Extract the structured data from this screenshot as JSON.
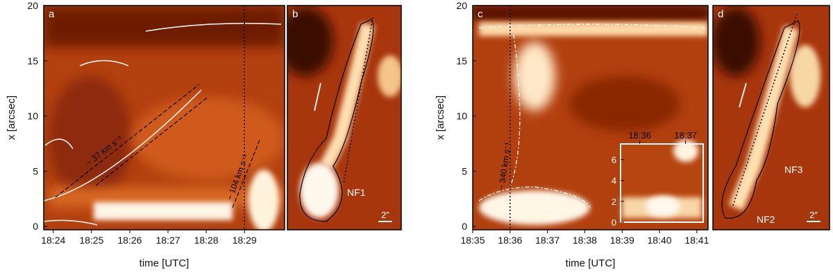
{
  "chart_data": [
    {
      "type": "timeslice",
      "panel": "a",
      "xlabel": "time [UTC]",
      "ylabel": "x [arcsec]",
      "xlim": [
        "18:23:45",
        "18:30:03"
      ],
      "xticks": [
        "18:24",
        "18:25",
        "18:26",
        "18:27",
        "18:28",
        "18:29"
      ],
      "ylim": [
        -0.3,
        20
      ],
      "yticks": [
        0,
        5,
        10,
        15,
        20
      ],
      "vlines": [
        "18:29"
      ],
      "annotations": [
        "~ 37 km s⁻¹",
        "~ 104 km s⁻¹"
      ]
    },
    {
      "type": "image",
      "panel": "b",
      "labels": [
        "NF1"
      ],
      "scale_label": "2″"
    },
    {
      "type": "timeslice",
      "panel": "c",
      "xlabel": "time [UTC]",
      "ylabel": "x [arcsec]",
      "xlim": [
        "18:35:00",
        "18:41:18"
      ],
      "xticks": [
        "18:35",
        "18:36",
        "18:37",
        "18:38",
        "18:39",
        "18:40",
        "18:41"
      ],
      "ylim": [
        -0.3,
        20
      ],
      "yticks": [
        0,
        5,
        10,
        15,
        20
      ],
      "vlines": [
        "18:36"
      ],
      "annotations": [
        "~ 340 km s⁻¹"
      ],
      "inset": {
        "xlim": [
          "18:35:35",
          "18:37:23"
        ],
        "xticks": [
          "18:36",
          "18:37"
        ],
        "ylim": [
          0,
          7.5
        ],
        "yticks": [
          0,
          2,
          4,
          6
        ]
      }
    },
    {
      "type": "image",
      "panel": "d",
      "labels": [
        "NF2",
        "NF3"
      ],
      "scale_label": "2″"
    }
  ]
}
